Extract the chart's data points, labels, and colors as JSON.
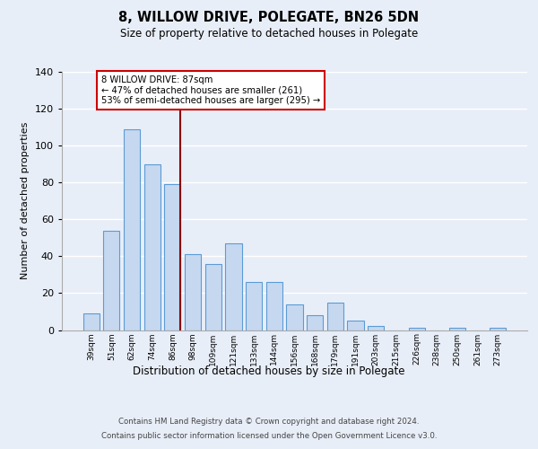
{
  "title": "8, WILLOW DRIVE, POLEGATE, BN26 5DN",
  "subtitle": "Size of property relative to detached houses in Polegate",
  "xlabel": "Distribution of detached houses by size in Polegate",
  "ylabel": "Number of detached properties",
  "categories": [
    "39sqm",
    "51sqm",
    "62sqm",
    "74sqm",
    "86sqm",
    "98sqm",
    "109sqm",
    "121sqm",
    "133sqm",
    "144sqm",
    "156sqm",
    "168sqm",
    "179sqm",
    "191sqm",
    "203sqm",
    "215sqm",
    "226sqm",
    "238sqm",
    "250sqm",
    "261sqm",
    "273sqm"
  ],
  "values": [
    9,
    54,
    109,
    90,
    79,
    41,
    36,
    47,
    26,
    26,
    14,
    8,
    15,
    5,
    2,
    0,
    1,
    0,
    1,
    0,
    1
  ],
  "bar_color": "#c5d8f0",
  "bar_edge_color": "#5b9bd5",
  "vline_color": "#8b0000",
  "annotation_text": "8 WILLOW DRIVE: 87sqm\n← 47% of detached houses are smaller (261)\n53% of semi-detached houses are larger (295) →",
  "annotation_box_color": "#ffffff",
  "annotation_box_edge": "#cc0000",
  "ylim": [
    0,
    140
  ],
  "yticks": [
    0,
    20,
    40,
    60,
    80,
    100,
    120,
    140
  ],
  "footer_line1": "Contains HM Land Registry data © Crown copyright and database right 2024.",
  "footer_line2": "Contains public sector information licensed under the Open Government Licence v3.0.",
  "bg_color": "#e8eef8",
  "plot_bg_color": "#e8eef8",
  "grid_color": "#ffffff"
}
